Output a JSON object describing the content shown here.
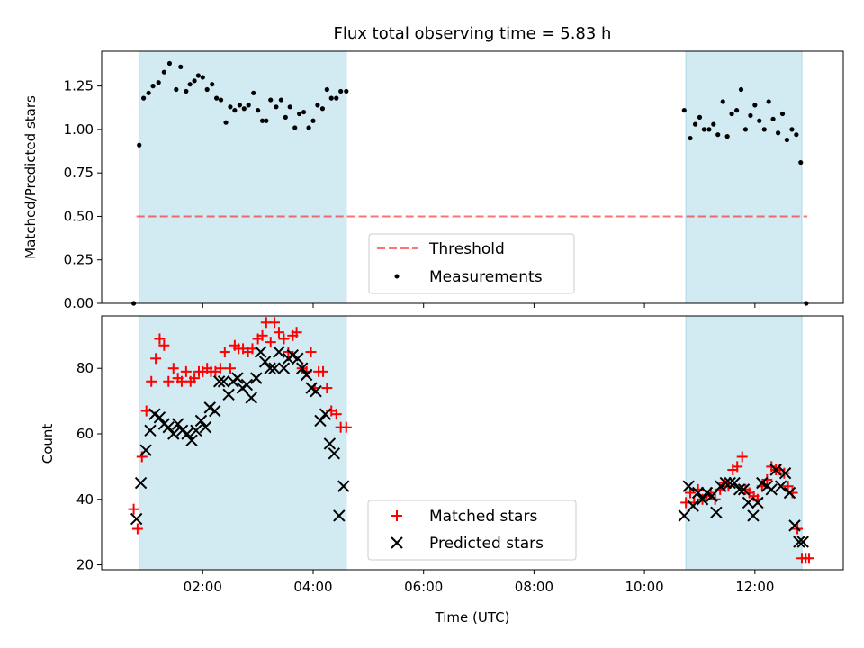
{
  "chart_data": [
    {
      "type": "scatter",
      "title": "Flux total observing time = 5.83 h",
      "xlabel": "",
      "ylabel": "Matched/Predicted stars",
      "xlim_hours": [
        0.17,
        13.6
      ],
      "ylim": [
        0,
        1.45
      ],
      "yticks": [
        0.0,
        0.25,
        0.5,
        0.75,
        1.0,
        1.25
      ],
      "ytick_labels": [
        "0.00",
        "0.25",
        "0.50",
        "0.75",
        "1.00",
        "1.25"
      ],
      "xticks_hours": [
        2,
        4,
        6,
        8,
        10,
        12
      ],
      "xtick_labels": [
        "",
        "",
        "",
        "",
        "",
        ""
      ],
      "shaded_intervals_hours": [
        [
          0.85,
          4.6
        ],
        [
          10.75,
          12.85
        ]
      ],
      "shade_color": "#add8e6",
      "threshold": {
        "name": "Threshold",
        "value": 0.5,
        "x_range_hours": [
          0.8,
          12.95
        ],
        "color": "#ff0000"
      },
      "legend": {
        "position": "lower center",
        "entries": [
          "Threshold",
          "Measurements"
        ]
      },
      "series": [
        {
          "name": "Measurements",
          "color": "#000000",
          "marker": "dot",
          "x_hours": [
            0.75,
            0.85,
            0.93,
            1.02,
            1.1,
            1.2,
            1.3,
            1.4,
            1.52,
            1.6,
            1.7,
            1.77,
            1.85,
            1.92,
            2.0,
            2.08,
            2.17,
            2.25,
            2.33,
            2.42,
            2.5,
            2.58,
            2.67,
            2.75,
            2.83,
            2.92,
            3.0,
            3.08,
            3.15,
            3.23,
            3.33,
            3.42,
            3.5,
            3.58,
            3.67,
            3.75,
            3.83,
            3.92,
            4.0,
            4.08,
            4.17,
            4.25,
            4.33,
            4.42,
            4.5,
            4.6,
            10.72,
            10.83,
            10.92,
            11.0,
            11.08,
            11.17,
            11.25,
            11.33,
            11.42,
            11.5,
            11.58,
            11.67,
            11.75,
            11.83,
            11.92,
            12.0,
            12.08,
            12.17,
            12.25,
            12.33,
            12.42,
            12.5,
            12.58,
            12.67,
            12.75,
            12.83,
            12.93
          ],
          "y": [
            0.0,
            0.91,
            1.18,
            1.21,
            1.25,
            1.27,
            1.33,
            1.38,
            1.23,
            1.36,
            1.22,
            1.26,
            1.28,
            1.31,
            1.3,
            1.23,
            1.26,
            1.18,
            1.17,
            1.04,
            1.13,
            1.11,
            1.14,
            1.12,
            1.14,
            1.21,
            1.11,
            1.05,
            1.05,
            1.17,
            1.13,
            1.17,
            1.07,
            1.13,
            1.01,
            1.09,
            1.1,
            1.01,
            1.05,
            1.14,
            1.12,
            1.23,
            1.18,
            1.18,
            1.22,
            1.22,
            1.11,
            0.95,
            1.03,
            1.07,
            1.0,
            1.0,
            1.03,
            0.97,
            1.16,
            0.96,
            1.09,
            1.11,
            1.23,
            1.0,
            1.08,
            1.14,
            1.05,
            1.0,
            1.16,
            1.06,
            0.98,
            1.09,
            0.94,
            1.0,
            0.97,
            0.81,
            0.0
          ]
        }
      ]
    },
    {
      "type": "scatter",
      "title": "",
      "xlabel": "Time (UTC)",
      "ylabel": "Count",
      "xlim_hours": [
        0.17,
        13.6
      ],
      "ylim": [
        18.5,
        96
      ],
      "yticks": [
        20,
        40,
        60,
        80
      ],
      "ytick_labels": [
        "20",
        "40",
        "60",
        "80"
      ],
      "xticks_hours": [
        2,
        4,
        6,
        8,
        10,
        12
      ],
      "xtick_labels": [
        "02:00",
        "04:00",
        "06:00",
        "08:00",
        "10:00",
        "12:00"
      ],
      "shaded_intervals_hours": [
        [
          0.85,
          4.6
        ],
        [
          10.75,
          12.85
        ]
      ],
      "shade_color": "#add8e6",
      "legend": {
        "position": "lower center",
        "entries": [
          "Matched stars",
          "Predicted stars"
        ]
      },
      "series": [
        {
          "name": "Matched stars",
          "color": "#ff0000",
          "marker": "plus",
          "x_hours": [
            0.75,
            0.82,
            0.9,
            0.98,
            1.07,
            1.15,
            1.22,
            1.3,
            1.38,
            1.47,
            1.55,
            1.62,
            1.7,
            1.78,
            1.85,
            1.93,
            2.0,
            2.08,
            2.15,
            2.23,
            2.32,
            2.4,
            2.5,
            2.58,
            2.65,
            2.73,
            2.82,
            2.9,
            3.0,
            3.08,
            3.15,
            3.23,
            3.3,
            3.38,
            3.47,
            3.55,
            3.63,
            3.7,
            3.8,
            3.88,
            3.96,
            4.03,
            4.1,
            4.18,
            4.25,
            4.33,
            4.42,
            4.5,
            4.6,
            10.75,
            10.83,
            10.9,
            10.97,
            11.05,
            11.13,
            11.2,
            11.28,
            11.37,
            11.45,
            11.52,
            11.6,
            11.68,
            11.77,
            11.83,
            11.9,
            11.98,
            12.05,
            12.13,
            12.22,
            12.3,
            12.38,
            12.45,
            12.53,
            12.6,
            12.68,
            12.77,
            12.85,
            12.92,
            12.98
          ],
          "y": [
            37,
            31,
            53,
            67,
            76,
            83,
            89,
            87,
            76,
            80,
            77,
            76,
            79,
            76,
            77,
            79,
            79,
            80,
            79,
            79,
            80,
            85,
            80,
            87,
            86,
            86,
            85,
            86,
            89,
            90,
            94,
            88,
            94,
            91,
            89,
            85,
            90,
            91,
            80,
            79,
            85,
            74,
            79,
            79,
            74,
            67,
            66,
            62,
            62,
            39,
            42,
            39,
            43,
            40,
            41,
            42,
            40,
            43,
            45,
            44,
            49,
            50,
            53,
            43,
            42,
            41,
            40,
            44,
            46,
            50,
            49,
            49,
            48,
            44,
            42,
            31,
            22,
            22,
            22
          ],
          "note_omit": null
        },
        {
          "name": "Predicted stars",
          "color": "#000000",
          "marker": "x",
          "x_hours": [
            0.8,
            0.88,
            0.97,
            1.05,
            1.13,
            1.22,
            1.3,
            1.38,
            1.47,
            1.55,
            1.63,
            1.72,
            1.8,
            1.88,
            1.97,
            2.05,
            2.13,
            2.22,
            2.3,
            2.38,
            2.47,
            2.55,
            2.63,
            2.72,
            2.8,
            2.88,
            2.97,
            3.05,
            3.13,
            3.22,
            3.3,
            3.38,
            3.47,
            3.55,
            3.63,
            3.72,
            3.8,
            3.88,
            3.97,
            4.05,
            4.13,
            4.22,
            4.3,
            4.38,
            4.47,
            4.55,
            10.72,
            10.8,
            10.88,
            10.97,
            11.05,
            11.13,
            11.22,
            11.3,
            11.38,
            11.47,
            11.55,
            11.63,
            11.72,
            11.8,
            11.88,
            11.97,
            12.05,
            12.13,
            12.22,
            12.3,
            12.38,
            12.47,
            12.55,
            12.63,
            12.72,
            12.8,
            12.87
          ],
          "y": [
            34,
            45,
            55,
            61,
            66,
            65,
            63,
            62,
            60,
            63,
            61,
            60,
            58,
            61,
            64,
            62,
            68,
            67,
            76,
            76,
            72,
            76,
            77,
            74,
            75,
            71,
            77,
            85,
            82,
            80,
            80,
            85,
            80,
            83,
            84,
            83,
            80,
            78,
            74,
            73,
            64,
            66,
            57,
            54,
            35,
            44,
            35,
            44,
            38,
            42,
            40,
            42,
            41,
            36,
            44,
            45,
            45,
            45,
            43,
            43,
            39,
            35,
            39,
            45,
            44,
            43,
            49,
            44,
            48,
            42,
            32,
            27,
            27
          ],
          "note_omit": null
        }
      ]
    }
  ]
}
